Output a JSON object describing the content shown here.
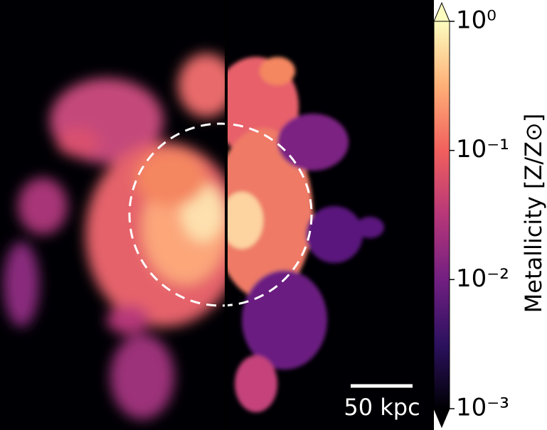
{
  "chart_data": {
    "type": "image",
    "colorbar_label": "Metallicity [Z/Z⊙]",
    "log_scale": true,
    "clim": [
      0.001,
      1
    ],
    "cticks": [
      {
        "value": 1,
        "label": "10⁰"
      },
      {
        "value": 0.1,
        "label": "10⁻¹"
      },
      {
        "value": 0.01,
        "label": "10⁻²"
      },
      {
        "value": 0.001,
        "label": "10⁻³"
      }
    ],
    "colormap_colors": [
      "#000004",
      "#2c115f",
      "#721f81",
      "#b73779",
      "#f1605d",
      "#feb078",
      "#fcfdbf"
    ],
    "scale_bar_label": "50 kpc"
  }
}
